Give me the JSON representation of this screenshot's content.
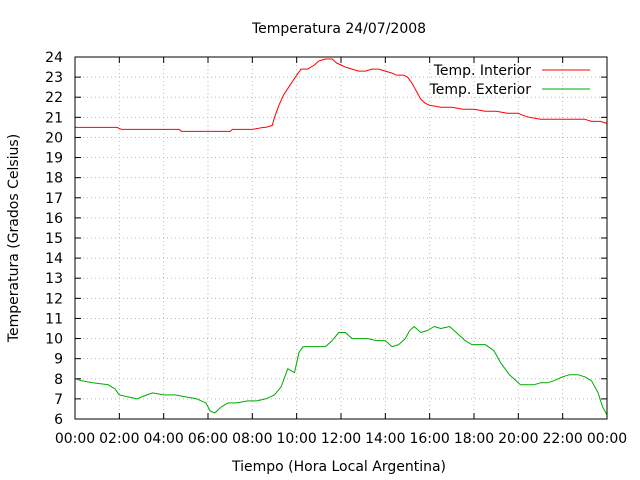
{
  "chart_data": {
    "type": "line",
    "title": "Temperatura 24/07/2008",
    "xlabel": "Tiempo (Hora Local Argentina)",
    "ylabel": "Temperatura (Grados Celsius)",
    "xlim": [
      0,
      24
    ],
    "ylim": [
      6,
      24
    ],
    "grid": true,
    "legend_position": "top-right",
    "x_tick_labels": [
      "00:00",
      "02:00",
      "04:00",
      "06:00",
      "08:00",
      "10:00",
      "12:00",
      "14:00",
      "16:00",
      "18:00",
      "20:00",
      "22:00",
      "00:00"
    ],
    "y_tick_labels": [
      "6",
      "7",
      "8",
      "9",
      "10",
      "11",
      "12",
      "13",
      "14",
      "15",
      "16",
      "17",
      "18",
      "19",
      "20",
      "21",
      "22",
      "23",
      "24"
    ],
    "series": [
      {
        "name": "Temp. Interior",
        "color": "#ff0000",
        "x": [
          0,
          1,
          1.9,
          2.1,
          3,
          4,
          4.7,
          4.8,
          5,
          6,
          7,
          7.1,
          7.5,
          8,
          8.5,
          8.6,
          8.9,
          9,
          9.2,
          9.4,
          9.7,
          10,
          10.2,
          10.5,
          10.8,
          11,
          11.3,
          11.6,
          11.8,
          12,
          12.2,
          12.5,
          12.8,
          13.1,
          13.4,
          13.7,
          14,
          14.3,
          14.5,
          14.8,
          15,
          15.2,
          15.4,
          15.6,
          15.8,
          16,
          16.5,
          17,
          17.5,
          18,
          18.5,
          19,
          19.5,
          20,
          20.2,
          20.5,
          21,
          21.5,
          22,
          22.5,
          23,
          23.3,
          23.7,
          24
        ],
        "y": [
          20.5,
          20.5,
          20.5,
          20.4,
          20.4,
          20.4,
          20.4,
          20.3,
          20.3,
          20.3,
          20.3,
          20.4,
          20.4,
          20.4,
          20.5,
          20.5,
          20.6,
          21.0,
          21.6,
          22.1,
          22.6,
          23.1,
          23.4,
          23.4,
          23.6,
          23.8,
          23.9,
          23.9,
          23.7,
          23.6,
          23.5,
          23.4,
          23.3,
          23.3,
          23.4,
          23.4,
          23.3,
          23.2,
          23.1,
          23.1,
          23.0,
          22.7,
          22.3,
          21.9,
          21.7,
          21.6,
          21.5,
          21.5,
          21.4,
          21.4,
          21.3,
          21.3,
          21.2,
          21.2,
          21.1,
          21.0,
          20.9,
          20.9,
          20.9,
          20.9,
          20.9,
          20.8,
          20.8,
          20.7
        ]
      },
      {
        "name": "Temp. Exterior",
        "color": "#00aa00",
        "x": [
          0,
          0.3,
          0.8,
          1.5,
          1.8,
          2.0,
          2.4,
          2.8,
          3.0,
          3.5,
          4.0,
          4.5,
          5.0,
          5.5,
          5.9,
          6.1,
          6.3,
          6.6,
          6.9,
          7.3,
          7.8,
          8.2,
          8.6,
          9.0,
          9.3,
          9.6,
          9.9,
          10.1,
          10.3,
          10.7,
          11.0,
          11.3,
          11.6,
          11.9,
          12.2,
          12.5,
          12.8,
          13.2,
          13.6,
          14.0,
          14.3,
          14.6,
          14.9,
          15.1,
          15.3,
          15.6,
          15.9,
          16.2,
          16.5,
          16.9,
          17.3,
          17.6,
          17.9,
          18.2,
          18.5,
          18.9,
          19.2,
          19.6,
          19.9,
          20.1,
          20.4,
          20.7,
          21.0,
          21.3,
          21.6,
          22.0,
          22.3,
          22.7,
          23.0,
          23.3,
          23.6,
          23.8,
          24.0
        ],
        "y": [
          8.0,
          7.9,
          7.8,
          7.7,
          7.5,
          7.2,
          7.1,
          7.0,
          7.1,
          7.3,
          7.2,
          7.2,
          7.1,
          7.0,
          6.8,
          6.4,
          6.3,
          6.6,
          6.8,
          6.8,
          6.9,
          6.9,
          7.0,
          7.2,
          7.6,
          8.5,
          8.3,
          9.3,
          9.6,
          9.6,
          9.6,
          9.6,
          9.9,
          10.3,
          10.3,
          10.0,
          10.0,
          10.0,
          9.9,
          9.9,
          9.6,
          9.7,
          10.0,
          10.4,
          10.6,
          10.3,
          10.4,
          10.6,
          10.5,
          10.6,
          10.2,
          9.9,
          9.7,
          9.7,
          9.7,
          9.4,
          8.8,
          8.2,
          7.9,
          7.7,
          7.7,
          7.7,
          7.8,
          7.8,
          7.9,
          8.1,
          8.2,
          8.2,
          8.1,
          7.9,
          7.3,
          6.6,
          6.2
        ]
      }
    ]
  }
}
